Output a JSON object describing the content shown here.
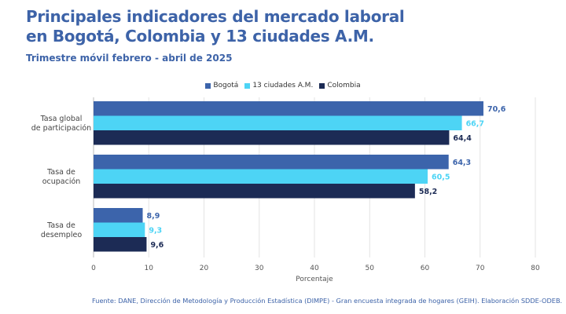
{
  "title_line1": "Principales indicadores del mercado laboral",
  "title_line2": "en Bogotá, Colombia y 13 ciudades A.M.",
  "subtitle": "Trimestre móvil febrero - abril de 2025",
  "source": "Fuente: DANE, Dirección de Metodología y Producción Estadística (DIMPE) - Gran encuesta integrada de hogares (GEIH). Elaboración SDDE-ODEB.",
  "colors": {
    "title": "#3d63a8",
    "bogota": "#3c64ab",
    "ciudades": "#4dd4f5",
    "colombia": "#1c2b55"
  },
  "chart_data": {
    "type": "bar",
    "orientation": "horizontal",
    "categories": [
      [
        "Tasa global",
        "de participación"
      ],
      [
        "Tasa de",
        "ocupación"
      ],
      [
        "Tasa de",
        "desempleo"
      ]
    ],
    "series": [
      {
        "name": "Bogotá",
        "values": [
          70.6,
          64.3,
          8.9
        ],
        "labels": [
          "70,6",
          "64,3",
          "8,9"
        ],
        "color": "#3c64ab"
      },
      {
        "name": "13 ciudades A.M.",
        "values": [
          66.7,
          60.5,
          9.3
        ],
        "labels": [
          "66,7",
          "60,5",
          "9,3"
        ],
        "color": "#4dd4f5"
      },
      {
        "name": "Colombia",
        "values": [
          64.4,
          58.2,
          9.6
        ],
        "labels": [
          "64,4",
          "58,2",
          "9,6"
        ],
        "color": "#1c2b55"
      }
    ],
    "xlabel": "Porcentaje",
    "xlim": [
      0,
      80
    ],
    "xticks": [
      0,
      10,
      20,
      30,
      40,
      50,
      60,
      70,
      80
    ],
    "grid": true,
    "legend": "top-center"
  }
}
